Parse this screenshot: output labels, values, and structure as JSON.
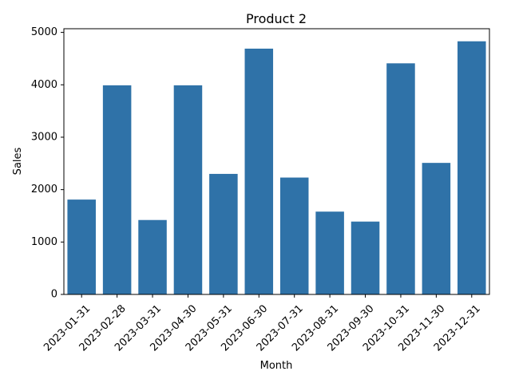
{
  "chart_data": {
    "type": "bar",
    "title": "Product 2",
    "xlabel": "Month",
    "ylabel": "Sales",
    "categories": [
      "2023-01-31",
      "2023-02-28",
      "2023-03-31",
      "2023-04-30",
      "2023-05-31",
      "2023-06-30",
      "2023-07-31",
      "2023-08-31",
      "2023-09-30",
      "2023-10-31",
      "2023-11-30",
      "2023-12-31"
    ],
    "values": [
      1810,
      3990,
      1420,
      3990,
      2300,
      4690,
      2230,
      1580,
      1390,
      4410,
      2510,
      4830
    ],
    "ylim": [
      0,
      5070
    ],
    "yticks": [
      0,
      1000,
      2000,
      3000,
      4000,
      5000
    ],
    "bar_color": "#2f72a8",
    "grid": false,
    "xtick_rotation": 45
  }
}
